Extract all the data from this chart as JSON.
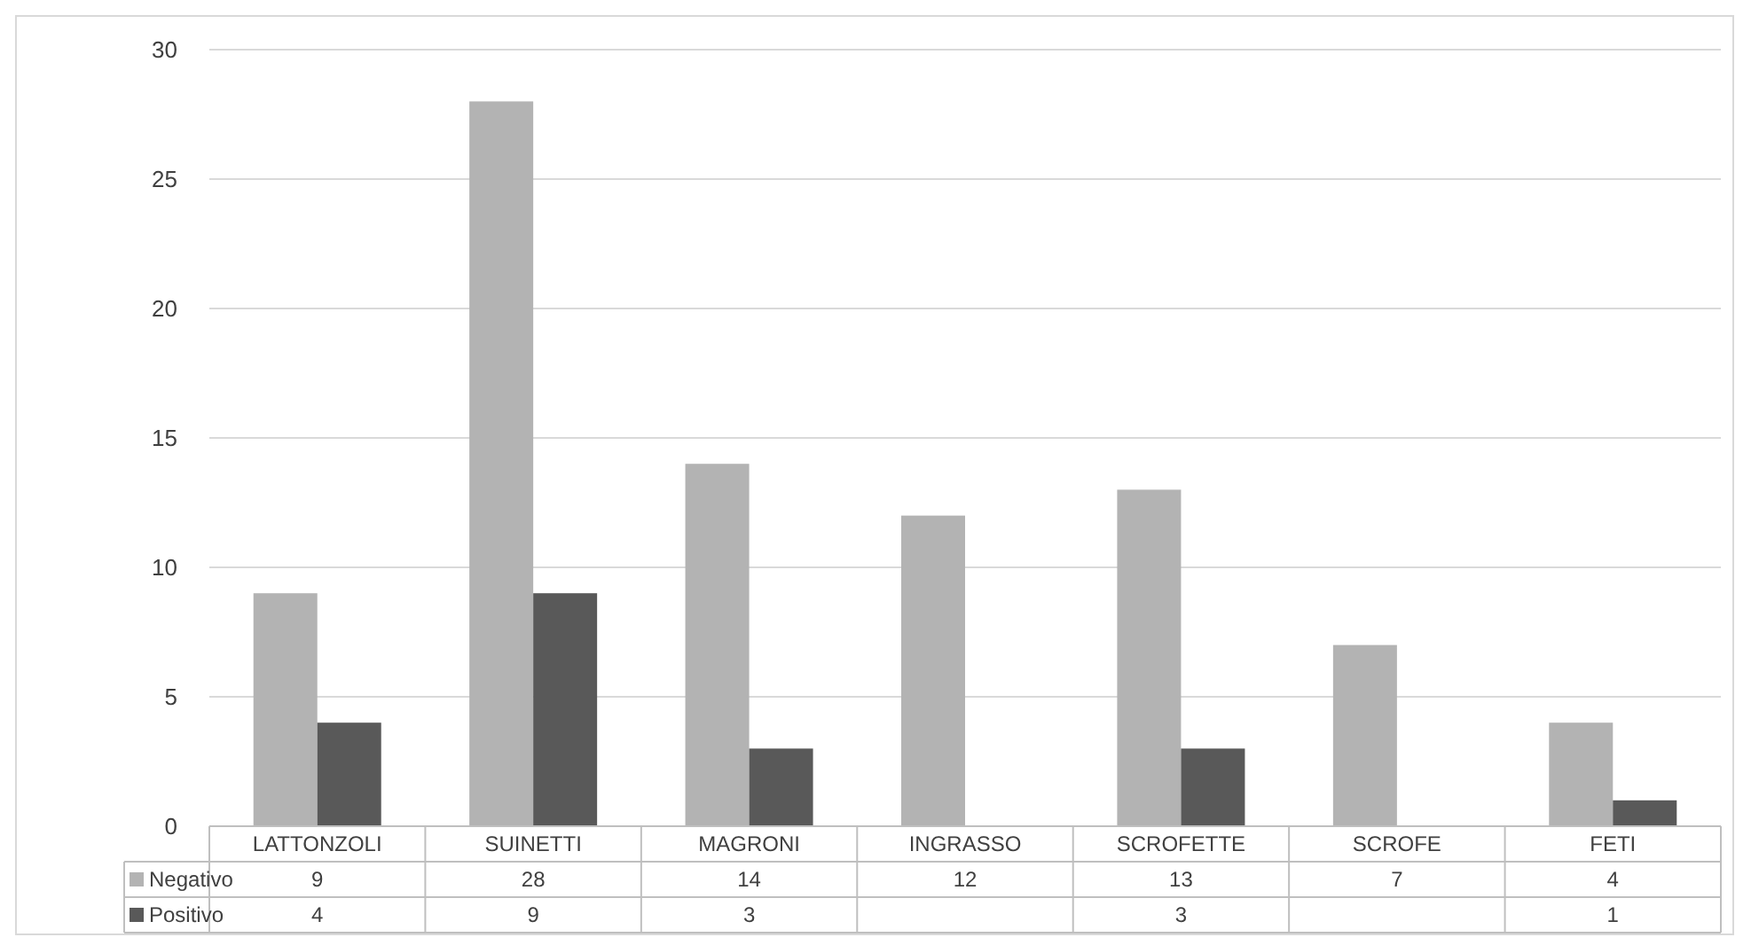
{
  "chart_data": {
    "type": "bar",
    "categories": [
      "LATTONZOLI",
      "SUINETTI",
      "MAGRONI",
      "INGRASSO",
      "SCROFETTE",
      "SCROFE",
      "FETI"
    ],
    "series": [
      {
        "name": "Negativo",
        "color": "#b3b3b3",
        "values": [
          9,
          28,
          14,
          12,
          13,
          7,
          4
        ]
      },
      {
        "name": "Positivo",
        "color": "#595959",
        "values": [
          4,
          9,
          3,
          null,
          3,
          null,
          1
        ]
      }
    ],
    "ylim": [
      0,
      30
    ],
    "yticks": [
      0,
      5,
      10,
      15,
      20,
      25,
      30
    ],
    "grid": "y",
    "legend": "bottom",
    "data_labels": true
  }
}
